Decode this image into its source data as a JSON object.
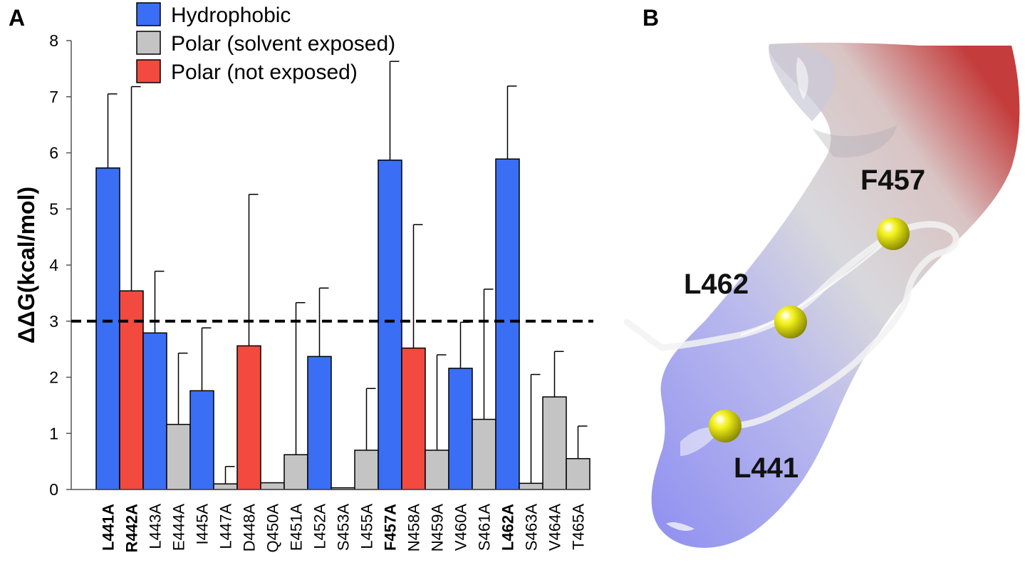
{
  "panels": {
    "a_label": "A",
    "b_label": "B"
  },
  "chart_data": {
    "type": "bar",
    "ylabel": "ΔΔG(kcal/mol)",
    "xlabel": "",
    "ylim": [
      0,
      8
    ],
    "yticks": [
      0,
      1,
      2,
      3,
      4,
      5,
      6,
      7,
      8
    ],
    "threshold": 3,
    "grid": false,
    "legend_position": "top",
    "legend": [
      {
        "key": "hydrophobic",
        "label": "Hydrophobic",
        "color": "#3a6ef5"
      },
      {
        "key": "polar_exposed",
        "label": "Polar (solvent exposed)",
        "color": "#c4c4c4"
      },
      {
        "key": "polar_buried",
        "label": "Polar (not exposed)",
        "color": "#f24a3f"
      }
    ],
    "bars": [
      {
        "label": "L441A",
        "value": 5.73,
        "error": 1.32,
        "group": "hydrophobic",
        "bold": true
      },
      {
        "label": "R442A",
        "value": 3.54,
        "error": 3.64,
        "group": "polar_buried",
        "bold": true
      },
      {
        "label": "L443A",
        "value": 2.79,
        "error": 1.1,
        "group": "hydrophobic",
        "bold": false
      },
      {
        "label": "E444A",
        "value": 1.16,
        "error": 1.27,
        "group": "polar_exposed",
        "bold": false
      },
      {
        "label": "I445A",
        "value": 1.76,
        "error": 1.12,
        "group": "hydrophobic",
        "bold": false
      },
      {
        "label": "L447A",
        "value": 0.1,
        "error": 0.31,
        "group": "polar_exposed",
        "bold": false
      },
      {
        "label": "D448A",
        "value": 2.56,
        "error": 2.7,
        "group": "polar_buried",
        "bold": false
      },
      {
        "label": "Q450A",
        "value": 0.12,
        "error": 0.0,
        "group": "polar_exposed",
        "bold": false
      },
      {
        "label": "E451A",
        "value": 0.62,
        "error": 2.71,
        "group": "polar_exposed",
        "bold": false
      },
      {
        "label": "L452A",
        "value": 2.37,
        "error": 1.22,
        "group": "hydrophobic",
        "bold": false
      },
      {
        "label": "S453A",
        "value": 0.03,
        "error": 0.0,
        "group": "polar_exposed",
        "bold": false
      },
      {
        "label": "L455A",
        "value": 0.7,
        "error": 1.1,
        "group": "polar_exposed",
        "bold": false
      },
      {
        "label": "F457A",
        "value": 5.87,
        "error": 1.76,
        "group": "hydrophobic",
        "bold": true
      },
      {
        "label": "N458A",
        "value": 2.52,
        "error": 2.2,
        "group": "polar_buried",
        "bold": false
      },
      {
        "label": "N459A",
        "value": 0.7,
        "error": 1.7,
        "group": "polar_exposed",
        "bold": false
      },
      {
        "label": "V460A",
        "value": 2.16,
        "error": 0.82,
        "group": "hydrophobic",
        "bold": false
      },
      {
        "label": "S461A",
        "value": 1.25,
        "error": 2.32,
        "group": "polar_exposed",
        "bold": false
      },
      {
        "label": "L462A",
        "value": 5.89,
        "error": 1.3,
        "group": "hydrophobic",
        "bold": true
      },
      {
        "label": "S463A",
        "value": 0.11,
        "error": 1.94,
        "group": "polar_exposed",
        "bold": false
      },
      {
        "label": "V464A",
        "value": 1.65,
        "error": 0.81,
        "group": "polar_exposed",
        "bold": false
      },
      {
        "label": "T465A",
        "value": 0.55,
        "error": 0.58,
        "group": "polar_exposed",
        "bold": false
      }
    ]
  },
  "structure": {
    "residue_labels": [
      "F457",
      "L462",
      "L441"
    ]
  }
}
